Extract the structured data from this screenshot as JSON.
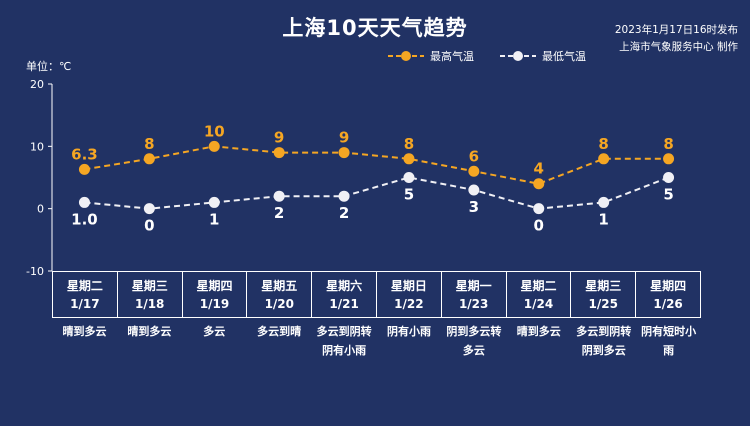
{
  "header": {
    "title": "上海10天天气趋势",
    "publish_time": "2023年1月17日16时发布",
    "publisher": "上海市气象服务中心 制作"
  },
  "colors": {
    "background": "#213264",
    "high": "#f5a623",
    "low": "#f0f0f5"
  },
  "chart_data": {
    "type": "line",
    "title": "上海10天天气趋势",
    "unit_label": "单位：℃",
    "categories": [
      "1/17",
      "1/18",
      "1/19",
      "1/20",
      "1/21",
      "1/22",
      "1/23",
      "1/24",
      "1/25",
      "1/26"
    ],
    "ylim": [
      -10,
      20
    ],
    "yticks": [
      "20",
      "10",
      "0",
      "-10"
    ],
    "legend_position": "top-right",
    "series": [
      {
        "name": "最高气温",
        "values": [
          6.3,
          8,
          10,
          9,
          9,
          8,
          6,
          4,
          8,
          8
        ],
        "labels": [
          "6.3",
          "8",
          "10",
          "9",
          "9",
          "8",
          "6",
          "4",
          "8",
          "8"
        ]
      },
      {
        "name": "最低气温",
        "values": [
          1.0,
          0,
          1,
          2,
          2,
          5,
          3,
          0,
          1,
          5
        ],
        "labels": [
          "1.0",
          "0",
          "1",
          "2",
          "2",
          "5",
          "3",
          "0",
          "1",
          "5"
        ]
      }
    ]
  },
  "days": [
    {
      "weekday": "星期二",
      "date": "1/17",
      "weather": [
        "晴到多云"
      ]
    },
    {
      "weekday": "星期三",
      "date": "1/18",
      "weather": [
        "晴到多云"
      ]
    },
    {
      "weekday": "星期四",
      "date": "1/19",
      "weather": [
        "多云"
      ]
    },
    {
      "weekday": "星期五",
      "date": "1/20",
      "weather": [
        "多云到晴"
      ]
    },
    {
      "weekday": "星期六",
      "date": "1/21",
      "weather": [
        "多云到阴转",
        "阴有小雨"
      ]
    },
    {
      "weekday": "星期日",
      "date": "1/22",
      "weather": [
        "阴有小雨"
      ]
    },
    {
      "weekday": "星期一",
      "date": "1/23",
      "weather": [
        "阴到多云转",
        "多云"
      ]
    },
    {
      "weekday": "星期二",
      "date": "1/24",
      "weather": [
        "晴到多云"
      ]
    },
    {
      "weekday": "星期三",
      "date": "1/25",
      "weather": [
        "多云到阴转",
        "阴到多云"
      ]
    },
    {
      "weekday": "星期四",
      "date": "1/26",
      "weather": [
        "阴有短时小",
        "雨"
      ]
    }
  ]
}
